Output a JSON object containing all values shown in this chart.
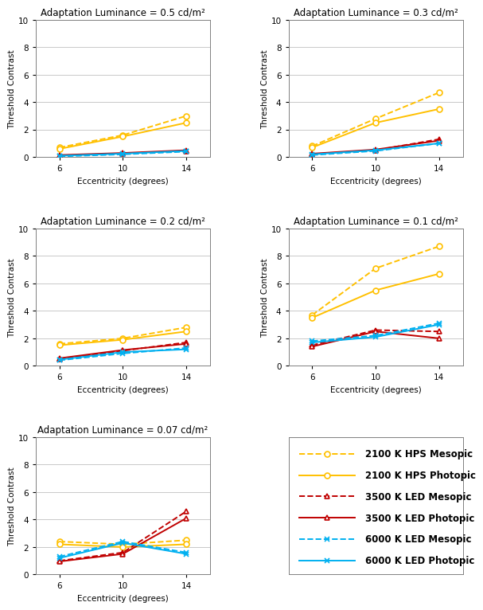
{
  "eccentricity": [
    6,
    10,
    14
  ],
  "panels": [
    {
      "title": "Adaptation Luminance = 0.5 cd/m²",
      "hps_mesopic": [
        0.7,
        1.6,
        3.0
      ],
      "hps_photopic": [
        0.6,
        1.5,
        2.5
      ],
      "led3500_mesopic": [
        0.1,
        0.25,
        0.45
      ],
      "led3500_photopic": [
        0.15,
        0.3,
        0.5
      ],
      "led6000_mesopic": [
        0.05,
        0.2,
        0.4
      ],
      "led6000_photopic": [
        0.1,
        0.25,
        0.45
      ]
    },
    {
      "title": "Adaptation Luminance = 0.3 cd/m²",
      "hps_mesopic": [
        0.8,
        2.8,
        4.7
      ],
      "hps_photopic": [
        0.7,
        2.5,
        3.5
      ],
      "led3500_mesopic": [
        0.2,
        0.5,
        1.3
      ],
      "led3500_photopic": [
        0.25,
        0.55,
        1.2
      ],
      "led6000_mesopic": [
        0.15,
        0.45,
        1.0
      ],
      "led6000_photopic": [
        0.2,
        0.5,
        1.0
      ]
    },
    {
      "title": "Adaptation Luminance = 0.2 cd/m²",
      "hps_mesopic": [
        1.6,
        2.0,
        2.8
      ],
      "hps_photopic": [
        1.5,
        1.9,
        2.5
      ],
      "led3500_mesopic": [
        0.5,
        1.1,
        1.7
      ],
      "led3500_photopic": [
        0.55,
        1.15,
        1.6
      ],
      "led6000_mesopic": [
        0.4,
        0.9,
        1.3
      ],
      "led6000_photopic": [
        0.45,
        1.0,
        1.2
      ]
    },
    {
      "title": "Adaptation Luminance = 0.1 cd/m²",
      "hps_mesopic": [
        3.7,
        7.1,
        8.7
      ],
      "hps_photopic": [
        3.5,
        5.5,
        6.7
      ],
      "led3500_mesopic": [
        1.5,
        2.6,
        2.5
      ],
      "led3500_photopic": [
        1.4,
        2.5,
        2.0
      ],
      "led6000_mesopic": [
        1.8,
        2.2,
        3.1
      ],
      "led6000_photopic": [
        1.7,
        2.1,
        3.0
      ]
    },
    {
      "title": "Adaptation Luminance = 0.07 cd/m²",
      "hps_mesopic": [
        2.4,
        2.2,
        2.5
      ],
      "hps_photopic": [
        2.2,
        2.0,
        2.2
      ],
      "led3500_mesopic": [
        1.0,
        1.6,
        4.6
      ],
      "led3500_photopic": [
        0.95,
        1.5,
        4.1
      ],
      "led6000_mesopic": [
        1.3,
        2.4,
        1.6
      ],
      "led6000_photopic": [
        1.2,
        2.3,
        1.5
      ]
    }
  ],
  "hps_color": "#FFC000",
  "led3500_color": "#C00000",
  "led6000_color": "#00B0F0",
  "ylabel": "Threshold Contrast",
  "xlabel": "Eccentricity (degrees)",
  "ylim": [
    0,
    10
  ],
  "yticks": [
    0,
    2,
    4,
    6,
    8,
    10
  ],
  "xticks": [
    6,
    10,
    14
  ],
  "legend_labels": [
    "2100 K HPS Mesopic",
    "2100 K HPS Photopic",
    "3500 K LED Mesopic",
    "3500 K LED Photopic",
    "6000 K LED Mesopic",
    "6000 K LED Photopic"
  ],
  "figsize": [
    6.24,
    7.49
  ],
  "dpi": 100
}
